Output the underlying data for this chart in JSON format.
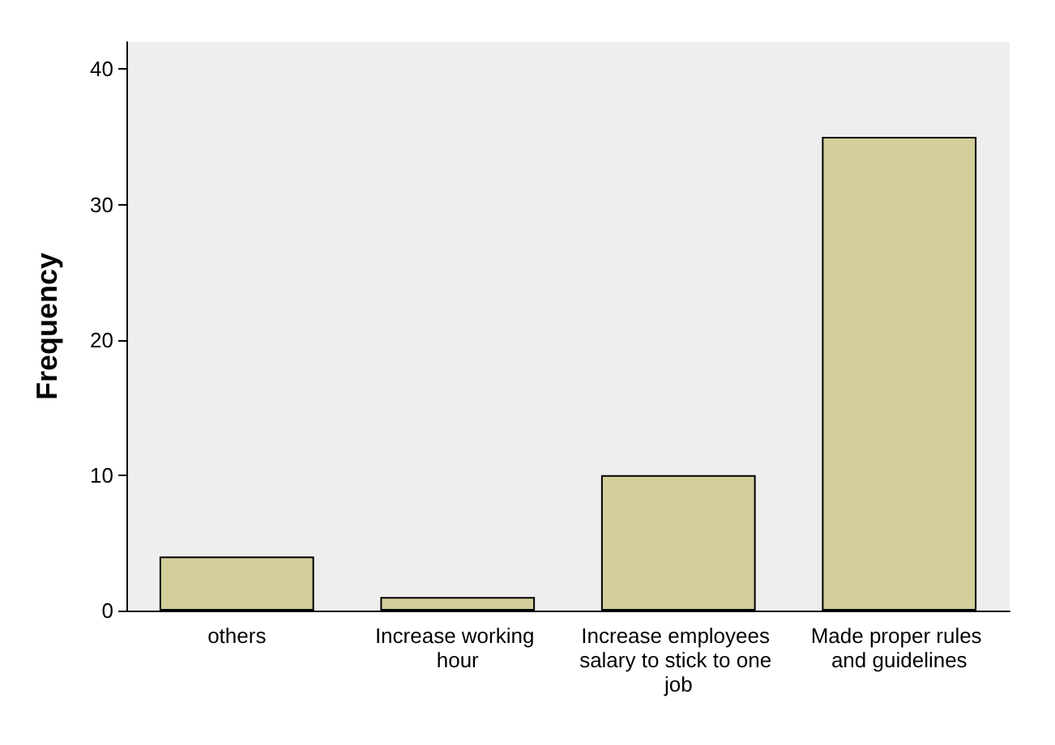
{
  "chart_data": {
    "type": "bar",
    "ylabel": "Frequency",
    "categories": [
      "others",
      "Increase working hour",
      "Increase employees salary to stick to one job",
      "Made proper rules and guidelines"
    ],
    "values": [
      4,
      1,
      10,
      35
    ],
    "color": "#d3ce9a",
    "ylim": [
      0,
      42
    ],
    "yticks": [
      0,
      10,
      20,
      30,
      40
    ],
    "grid": false
  }
}
